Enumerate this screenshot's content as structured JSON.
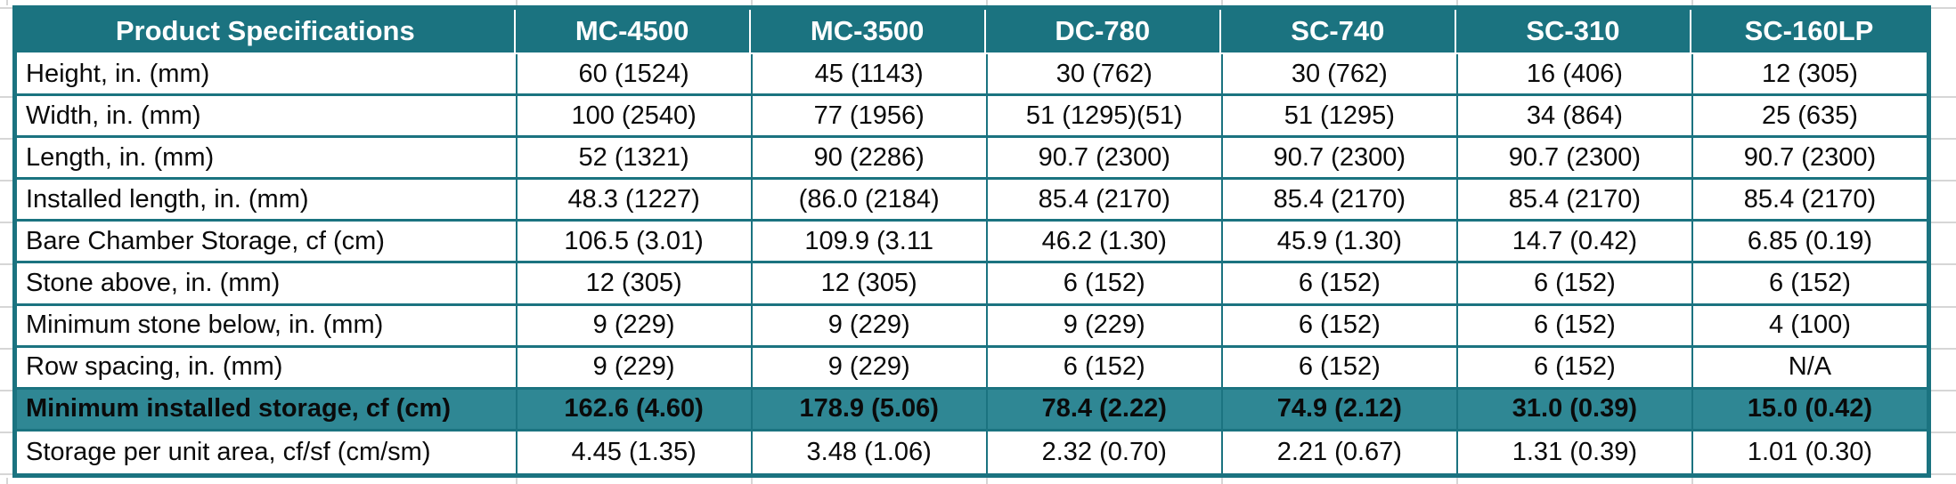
{
  "table": {
    "title": "Product Specifications",
    "columns": [
      "MC-4500",
      "MC-3500",
      "DC-780",
      "SC-740",
      "SC-310",
      "SC-160LP"
    ],
    "rows": [
      {
        "label": "Height, in. (mm)",
        "highlight": false,
        "values": [
          "60 (1524)",
          "45 (1143)",
          "30 (762)",
          "30 (762)",
          "16 (406)",
          "12 (305)"
        ]
      },
      {
        "label": "Width, in. (mm)",
        "highlight": false,
        "values": [
          "100 (2540)",
          "77 (1956)",
          "51 (1295)(51)",
          "51 (1295)",
          "34 (864)",
          "25 (635)"
        ]
      },
      {
        "label": "Length, in. (mm)",
        "highlight": false,
        "values": [
          "52 (1321)",
          "90 (2286)",
          "90.7 (2300)",
          "90.7 (2300)",
          "90.7 (2300)",
          "90.7 (2300)"
        ]
      },
      {
        "label": "Installed length, in. (mm)",
        "highlight": false,
        "values": [
          "48.3 (1227)",
          "(86.0 (2184)",
          "85.4 (2170)",
          "85.4 (2170)",
          "85.4 (2170)",
          "85.4 (2170)"
        ]
      },
      {
        "label": "Bare Chamber Storage, cf (cm)",
        "highlight": false,
        "values": [
          "106.5 (3.01)",
          "109.9 (3.11",
          "46.2 (1.30)",
          "45.9 (1.30)",
          "14.7 (0.42)",
          "6.85 (0.19)"
        ]
      },
      {
        "label": "Stone above, in. (mm)",
        "highlight": false,
        "values": [
          "12 (305)",
          "12 (305)",
          "6 (152)",
          "6 (152)",
          "6 (152)",
          "6 (152)"
        ]
      },
      {
        "label": "Minimum stone below, in. (mm)",
        "highlight": false,
        "values": [
          "9 (229)",
          "9 (229)",
          "9 (229)",
          "6 (152)",
          "6 (152)",
          "4 (100)"
        ]
      },
      {
        "label": "Row spacing, in. (mm)",
        "highlight": false,
        "values": [
          "9 (229)",
          "9 (229)",
          "6 (152)",
          "6 (152)",
          "6 (152)",
          "N/A"
        ]
      },
      {
        "label": "Minimum installed storage, cf (cm)",
        "highlight": true,
        "values": [
          "162.6 (4.60)",
          "178.9 (5.06)",
          "78.4 (2.22)",
          "74.9 (2.12)",
          "31.0 (0.39)",
          "15.0 (0.42)"
        ]
      },
      {
        "label": "Storage per unit area, cf/sf (cm/sm)",
        "highlight": false,
        "values": [
          "4.45 (1.35)",
          "3.48 (1.06)",
          "2.32 (0.70)",
          "2.21 (0.67)",
          "1.31 (0.39)",
          "1.01 (0.30)"
        ]
      }
    ],
    "colors": {
      "header_bg": "#1B7380",
      "header_text": "#FFFFFF",
      "highlight_bg": "#2F8794",
      "border": "#1B7380",
      "margin_gridline": "#D6D6D6",
      "body_text": "#0A0A0A"
    }
  }
}
